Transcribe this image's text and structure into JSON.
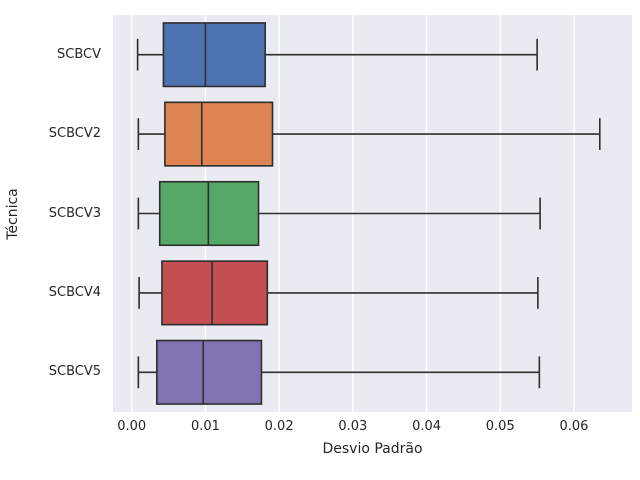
{
  "chart_data": {
    "type": "boxplot",
    "orientation": "horizontal",
    "title": "",
    "xlabel": "Desvio Padrão",
    "ylabel": "Técnica",
    "categories": [
      "SCBCV",
      "SCBCV2",
      "SCBCV3",
      "SCBCV4",
      "SCBCV5"
    ],
    "series": [
      {
        "name": "SCBCV",
        "whisker_low": 0.0008,
        "q1": 0.0043,
        "median": 0.01,
        "q3": 0.0181,
        "whisker_high": 0.055,
        "fliers": [],
        "color": "#4C72B0"
      },
      {
        "name": "SCBCV2",
        "whisker_low": 0.0009,
        "q1": 0.0045,
        "median": 0.0095,
        "q3": 0.0191,
        "whisker_high": 0.0635,
        "fliers": [],
        "color": "#DD8452"
      },
      {
        "name": "SCBCV3",
        "whisker_low": 0.0009,
        "q1": 0.0038,
        "median": 0.0104,
        "q3": 0.0172,
        "whisker_high": 0.0554,
        "fliers": [],
        "color": "#55A868"
      },
      {
        "name": "SCBCV4",
        "whisker_low": 0.001,
        "q1": 0.0041,
        "median": 0.0109,
        "q3": 0.0184,
        "whisker_high": 0.0551,
        "fliers": [],
        "color": "#C44E52"
      },
      {
        "name": "SCBCV5",
        "whisker_low": 0.0009,
        "q1": 0.0034,
        "median": 0.0097,
        "q3": 0.0176,
        "whisker_high": 0.0553,
        "fliers": [],
        "color": "#8172B3"
      }
    ],
    "xlim": [
      -0.00254,
      0.06787
    ],
    "x_ticks": [
      0,
      0.01,
      0.02,
      0.03,
      0.04,
      0.05,
      0.06
    ],
    "x_tick_labels": [
      "0.00",
      "0.01",
      "0.02",
      "0.03",
      "0.04",
      "0.05",
      "0.06"
    ],
    "grid": true,
    "legend": null,
    "style": {
      "plot_background": "#EAEAF2",
      "grid_color": "#FFFFFF",
      "line_color": "#2E2E2E",
      "text_color": "#262626",
      "figure_background": "#FFFFFF"
    }
  }
}
